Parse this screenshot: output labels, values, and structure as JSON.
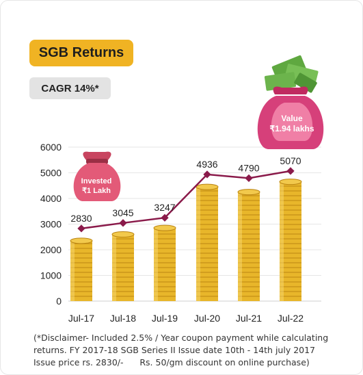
{
  "header": {
    "title": "SGB Returns",
    "cagr_label": "CAGR 14%*"
  },
  "invested_bag": {
    "line1": "Invested",
    "line2": "₹1 Lakh"
  },
  "value_bag": {
    "line1": "Value",
    "line2": "₹1.94 lakhs"
  },
  "chart_data": {
    "type": "line",
    "title": "",
    "xlabel": "",
    "ylabel": "",
    "categories": [
      "Jul-17",
      "Jul-18",
      "Jul-19",
      "Jul-20",
      "Jul-21",
      "Jul-22"
    ],
    "series": [
      {
        "values": [
          2830,
          3045,
          3247,
          4936,
          4790,
          5070
        ]
      }
    ],
    "bar_values": [
      2350,
      2600,
      2850,
      4450,
      4250,
      4650
    ],
    "yticks": [
      0,
      1000,
      2000,
      3000,
      4000,
      5000,
      6000
    ],
    "ylim": [
      0,
      6000
    ],
    "grid": true,
    "colors": {
      "line": "#8a1a4a",
      "coin": "#e8b62a",
      "coin_dark": "#b98312",
      "grid": "#e6e6e6"
    }
  },
  "disclaimer": [
    "(*Disclaimer- Included 2.5% / Year coupon payment while calculating",
    "returns. FY 2017-18 SGB Series II Issue date 10th - 14th july 2017",
    "Issue price rs. 2830/-      Rs. 50/gm discount on online purchase)"
  ]
}
